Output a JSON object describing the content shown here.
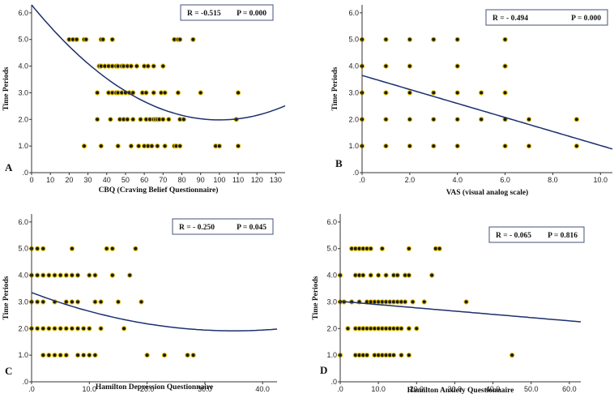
{
  "chart_data": [
    {
      "type": "scatter",
      "panel": "A",
      "xlabel": "CBQ (Craving Belief Questionnaire)",
      "ylabel": "Time Periods",
      "xlim": [
        0,
        135
      ],
      "ylim": [
        0,
        6.3
      ],
      "xticks": [
        0,
        10,
        20,
        30,
        40,
        50,
        60,
        70,
        80,
        90,
        100,
        110,
        120,
        130
      ],
      "xtick_labels": [
        "0",
        "10",
        "20",
        "30",
        "40",
        "50",
        "60",
        "70",
        "80",
        "90",
        "100",
        "110",
        "120",
        "130"
      ],
      "yticks": [
        0,
        1,
        2,
        3,
        4,
        5,
        6
      ],
      "ytick_labels": [
        ".0",
        "1.0",
        "2.0",
        "3.0",
        "4.0",
        "5.0",
        "6.0"
      ],
      "stats": {
        "r": "R = -0.515",
        "p": "P = 0.000"
      },
      "fit": {
        "kind": "quadratic",
        "coef": [
          6.3,
          -0.0864,
          0.000432
        ]
      },
      "points": [
        [
          20,
          5
        ],
        [
          22,
          5
        ],
        [
          24,
          5
        ],
        [
          28,
          5
        ],
        [
          29,
          5
        ],
        [
          37,
          5
        ],
        [
          38,
          5
        ],
        [
          43,
          5
        ],
        [
          76,
          5
        ],
        [
          78,
          5
        ],
        [
          79,
          5
        ],
        [
          86,
          5
        ],
        [
          36,
          4
        ],
        [
          37,
          4
        ],
        [
          39,
          4
        ],
        [
          41,
          4
        ],
        [
          43,
          4
        ],
        [
          45,
          4
        ],
        [
          46,
          4
        ],
        [
          48,
          4
        ],
        [
          49,
          4
        ],
        [
          51,
          4
        ],
        [
          53,
          4
        ],
        [
          56,
          4
        ],
        [
          60,
          4
        ],
        [
          62,
          4
        ],
        [
          65,
          4
        ],
        [
          70,
          4
        ],
        [
          35,
          3
        ],
        [
          41,
          3
        ],
        [
          43,
          3
        ],
        [
          45,
          3
        ],
        [
          46,
          3
        ],
        [
          48,
          3
        ],
        [
          50,
          3
        ],
        [
          52,
          3
        ],
        [
          54,
          3
        ],
        [
          59,
          3
        ],
        [
          61,
          3
        ],
        [
          65,
          3
        ],
        [
          69,
          3
        ],
        [
          71,
          3
        ],
        [
          78,
          3
        ],
        [
          90,
          3
        ],
        [
          110,
          3
        ],
        [
          35,
          2
        ],
        [
          42,
          2
        ],
        [
          47,
          2
        ],
        [
          49,
          2
        ],
        [
          51,
          2
        ],
        [
          54,
          2
        ],
        [
          58,
          2
        ],
        [
          61,
          2
        ],
        [
          63,
          2
        ],
        [
          65,
          2
        ],
        [
          66,
          2
        ],
        [
          67,
          2
        ],
        [
          68,
          2
        ],
        [
          70,
          2
        ],
        [
          73,
          2
        ],
        [
          79,
          2
        ],
        [
          81,
          2
        ],
        [
          109,
          2
        ],
        [
          28,
          1
        ],
        [
          37,
          1
        ],
        [
          46,
          1
        ],
        [
          53,
          1
        ],
        [
          57,
          1
        ],
        [
          60,
          1
        ],
        [
          62,
          1
        ],
        [
          64,
          1
        ],
        [
          67,
          1
        ],
        [
          71,
          1
        ],
        [
          76,
          1
        ],
        [
          77,
          1
        ],
        [
          79,
          1
        ],
        [
          98,
          1
        ],
        [
          100,
          1
        ],
        [
          110,
          1
        ]
      ]
    },
    {
      "type": "scatter",
      "panel": "B",
      "xlabel": "VAS (visual analog scale)",
      "ylabel": "Time Periods",
      "xlim": [
        0,
        10.5
      ],
      "ylim": [
        0,
        6.3
      ],
      "xticks": [
        0,
        2,
        4,
        6,
        8,
        10
      ],
      "xtick_labels": [
        ".0",
        "2.0",
        "4.0",
        "6.0",
        "8.0",
        "10.0"
      ],
      "yticks": [
        0,
        1,
        2,
        3,
        4,
        5,
        6
      ],
      "ytick_labels": [
        ".0",
        "1.0",
        "2.0",
        "3.0",
        "4.0",
        "5.0",
        "6.0"
      ],
      "stats": {
        "r": "R = - 0.494",
        "p": "P = 0.000"
      },
      "fit": {
        "kind": "linear",
        "coef": [
          3.65,
          -0.263
        ]
      },
      "points": [
        [
          0,
          5
        ],
        [
          1,
          5
        ],
        [
          2,
          5
        ],
        [
          3,
          5
        ],
        [
          4,
          5
        ],
        [
          6,
          5
        ],
        [
          0,
          4
        ],
        [
          1,
          4
        ],
        [
          2,
          4
        ],
        [
          4,
          4
        ],
        [
          6,
          4
        ],
        [
          0,
          3
        ],
        [
          1,
          3
        ],
        [
          2,
          3
        ],
        [
          3,
          3
        ],
        [
          4,
          3
        ],
        [
          5,
          3
        ],
        [
          6,
          3
        ],
        [
          0,
          2
        ],
        [
          1,
          2
        ],
        [
          2,
          2
        ],
        [
          3,
          2
        ],
        [
          4,
          2
        ],
        [
          5,
          2
        ],
        [
          6,
          2
        ],
        [
          7,
          2
        ],
        [
          9,
          2
        ],
        [
          0,
          1
        ],
        [
          1,
          1
        ],
        [
          2,
          1
        ],
        [
          3,
          1
        ],
        [
          4,
          1
        ],
        [
          6,
          1
        ],
        [
          7,
          1
        ],
        [
          9,
          1
        ]
      ]
    },
    {
      "type": "scatter",
      "panel": "C",
      "xlabel": "Hamilton Depression Questionnaire",
      "ylabel": "Time Periods",
      "xlim": [
        0,
        42.5
      ],
      "ylim": [
        0,
        6.3
      ],
      "xticks": [
        0,
        10,
        20,
        30,
        40
      ],
      "xtick_labels": [
        ".0",
        "10.0",
        "20.0",
        "30.0",
        "40.0"
      ],
      "yticks": [
        0,
        1,
        2,
        3,
        4,
        5,
        6
      ],
      "ytick_labels": [
        ".0",
        "1.0",
        "2.0",
        "3.0",
        "4.0",
        "5.0",
        "6.0"
      ],
      "stats": {
        "r": "R = - 0.250",
        "p": "P = 0.045"
      },
      "fit": {
        "kind": "quadratic",
        "coef": [
          3.35,
          -0.082,
          0.00117
        ]
      },
      "points": [
        [
          0,
          5
        ],
        [
          1,
          5
        ],
        [
          2,
          5
        ],
        [
          7,
          5
        ],
        [
          13,
          5
        ],
        [
          14,
          5
        ],
        [
          18,
          5
        ],
        [
          0,
          4
        ],
        [
          1,
          4
        ],
        [
          2,
          4
        ],
        [
          3,
          4
        ],
        [
          4,
          4
        ],
        [
          5,
          4
        ],
        [
          6,
          4
        ],
        [
          7,
          4
        ],
        [
          8,
          4
        ],
        [
          10,
          4
        ],
        [
          11,
          4
        ],
        [
          14,
          4
        ],
        [
          17,
          4
        ],
        [
          0,
          3
        ],
        [
          1,
          3
        ],
        [
          2,
          3
        ],
        [
          4,
          3
        ],
        [
          6,
          3
        ],
        [
          7,
          3
        ],
        [
          8,
          3
        ],
        [
          11,
          3
        ],
        [
          12,
          3
        ],
        [
          15,
          3
        ],
        [
          19,
          3
        ],
        [
          0,
          2
        ],
        [
          1,
          2
        ],
        [
          2,
          2
        ],
        [
          3,
          2
        ],
        [
          4,
          2
        ],
        [
          5,
          2
        ],
        [
          6,
          2
        ],
        [
          7,
          2
        ],
        [
          8,
          2
        ],
        [
          9,
          2
        ],
        [
          10,
          2
        ],
        [
          12,
          2
        ],
        [
          16,
          2
        ],
        [
          2,
          1
        ],
        [
          3,
          1
        ],
        [
          4,
          1
        ],
        [
          5,
          1
        ],
        [
          6,
          1
        ],
        [
          8,
          1
        ],
        [
          9,
          1
        ],
        [
          10,
          1
        ],
        [
          11,
          1
        ],
        [
          20,
          1
        ],
        [
          23,
          1
        ],
        [
          27,
          1
        ],
        [
          28,
          1
        ]
      ]
    },
    {
      "type": "scatter",
      "panel": "D",
      "xlabel": "Hamilton Anxiety Questionnaire",
      "ylabel": "Time Periods",
      "xlim": [
        0,
        63
      ],
      "ylim": [
        0,
        6.3
      ],
      "xticks": [
        0,
        10,
        20,
        30,
        40,
        50,
        60
      ],
      "xtick_labels": [
        ".0",
        "10.0",
        "20.0",
        "30.0",
        "40.0",
        "50.0",
        "60.0"
      ],
      "yticks": [
        0,
        1,
        2,
        3,
        4,
        5,
        6
      ],
      "ytick_labels": [
        ".0",
        "1.0",
        "2.0",
        "3.0",
        "4.0",
        "5.0",
        "6.0"
      ],
      "stats": {
        "r": "R = - 0.065",
        "p": "P = 0.816"
      },
      "fit": {
        "kind": "linear",
        "coef": [
          3.02,
          -0.0122
        ]
      },
      "points": [
        [
          3,
          5
        ],
        [
          4,
          5
        ],
        [
          5,
          5
        ],
        [
          6,
          5
        ],
        [
          7,
          5
        ],
        [
          8,
          5
        ],
        [
          11,
          5
        ],
        [
          18,
          5
        ],
        [
          25,
          5
        ],
        [
          26,
          5
        ],
        [
          0,
          4
        ],
        [
          4,
          4
        ],
        [
          5,
          4
        ],
        [
          6,
          4
        ],
        [
          8,
          4
        ],
        [
          10,
          4
        ],
        [
          12,
          4
        ],
        [
          14,
          4
        ],
        [
          15,
          4
        ],
        [
          17,
          4
        ],
        [
          18,
          4
        ],
        [
          24,
          4
        ],
        [
          0,
          3
        ],
        [
          1,
          3
        ],
        [
          3,
          3
        ],
        [
          5,
          3
        ],
        [
          7,
          3
        ],
        [
          8,
          3
        ],
        [
          9,
          3
        ],
        [
          10,
          3
        ],
        [
          11,
          3
        ],
        [
          12,
          3
        ],
        [
          13,
          3
        ],
        [
          14,
          3
        ],
        [
          15,
          3
        ],
        [
          16,
          3
        ],
        [
          17,
          3
        ],
        [
          19,
          3
        ],
        [
          22,
          3
        ],
        [
          33,
          3
        ],
        [
          2,
          2
        ],
        [
          4,
          2
        ],
        [
          5,
          2
        ],
        [
          6,
          2
        ],
        [
          7,
          2
        ],
        [
          8,
          2
        ],
        [
          9,
          2
        ],
        [
          10,
          2
        ],
        [
          11,
          2
        ],
        [
          12,
          2
        ],
        [
          13,
          2
        ],
        [
          14,
          2
        ],
        [
          15,
          2
        ],
        [
          16,
          2
        ],
        [
          18,
          2
        ],
        [
          20,
          2
        ],
        [
          0,
          1
        ],
        [
          4,
          1
        ],
        [
          5,
          1
        ],
        [
          6,
          1
        ],
        [
          7,
          1
        ],
        [
          9,
          1
        ],
        [
          10,
          1
        ],
        [
          11,
          1
        ],
        [
          12,
          1
        ],
        [
          13,
          1
        ],
        [
          14,
          1
        ],
        [
          16,
          1
        ],
        [
          18,
          1
        ],
        [
          45,
          1
        ]
      ]
    }
  ]
}
